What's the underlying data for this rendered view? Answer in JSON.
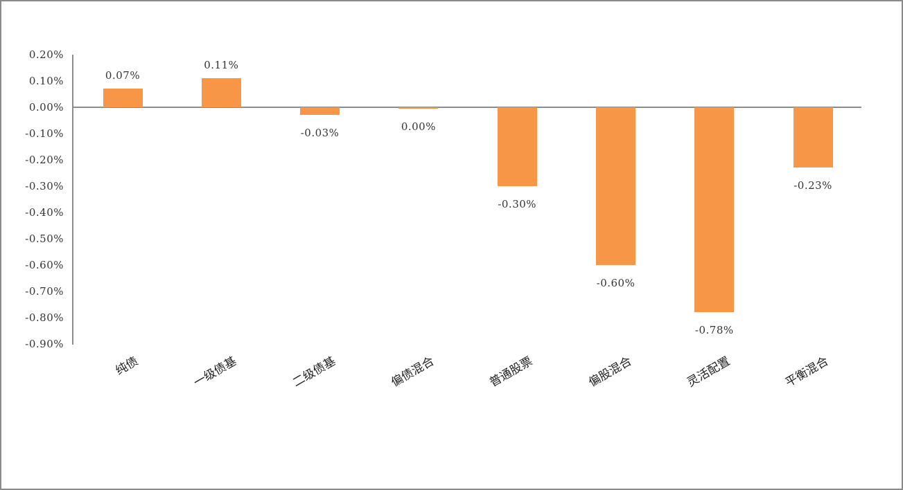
{
  "chart_data": {
    "type": "bar",
    "title": "",
    "xlabel": "",
    "ylabel": "",
    "categories": [
      "纯债",
      "一级债基",
      "二级债基",
      "偏债混合",
      "普通股票",
      "偏股混合",
      "灵活配置",
      "平衡混合"
    ],
    "values": [
      0.07,
      0.11,
      -0.03,
      0.0,
      -0.3,
      -0.6,
      -0.78,
      -0.23
    ],
    "value_labels": [
      "0.07%",
      "0.11%",
      "-0.03%",
      "0.00%",
      "-0.30%",
      "-0.60%",
      "-0.78%",
      "-0.23%"
    ],
    "unit": "%",
    "ylim": [
      -0.9,
      0.2
    ],
    "yticks": [
      "0.20%",
      "0.10%",
      "0.00%",
      "-0.10%",
      "-0.20%",
      "-0.30%",
      "-0.40%",
      "-0.50%",
      "-0.60%",
      "-0.70%",
      "-0.80%",
      "-0.90%"
    ],
    "ytick_values": [
      0.2,
      0.1,
      0.0,
      -0.1,
      -0.2,
      -0.3,
      -0.4,
      -0.5,
      -0.6,
      -0.7,
      -0.8,
      -0.9
    ],
    "grid": false,
    "legend": null,
    "bar_color": "#F79646",
    "axis_color": "#8C8C8C",
    "x_tick_rotation": -30
  }
}
